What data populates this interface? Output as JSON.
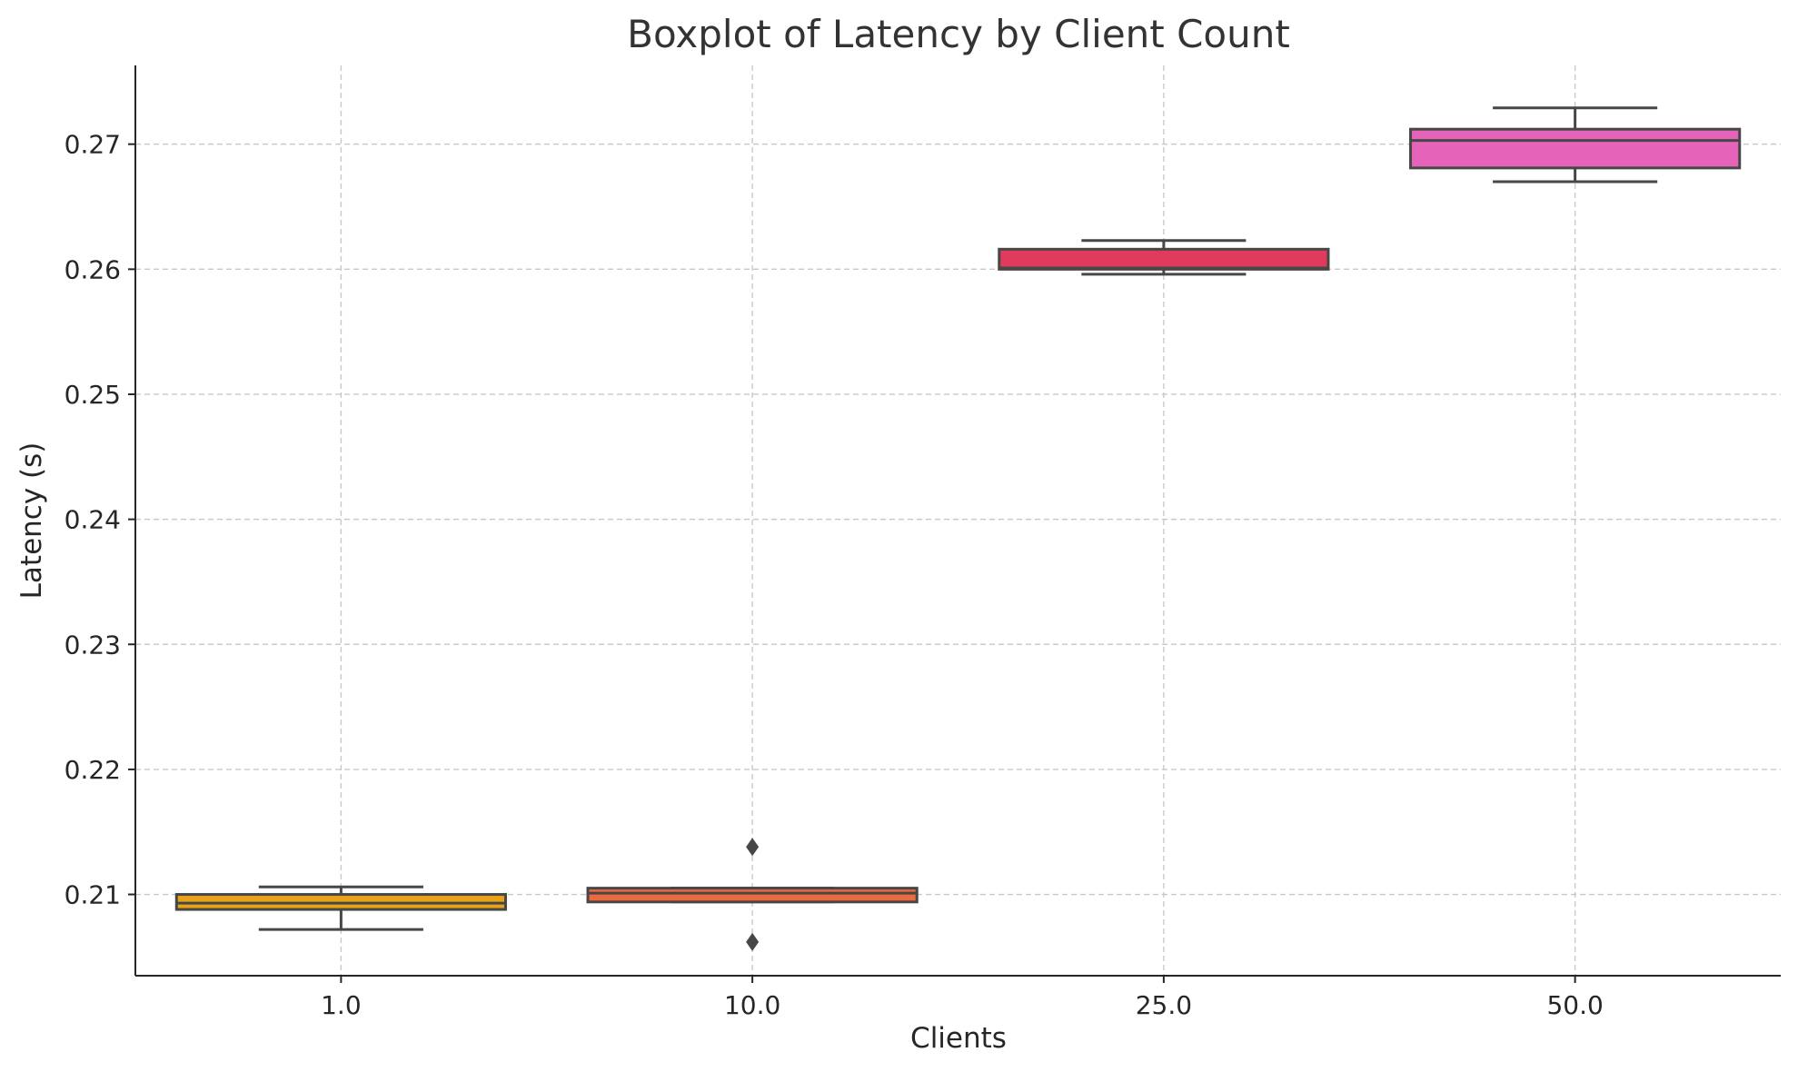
{
  "chart_data": {
    "type": "boxplot",
    "title": "Boxplot of Latency by Client Count",
    "xlabel": "Clients",
    "ylabel": "Latency (s)",
    "categories": [
      "1.0",
      "10.0",
      "25.0",
      "50.0"
    ],
    "y_ticks": [
      "0.21",
      "0.22",
      "0.23",
      "0.24",
      "0.25",
      "0.26",
      "0.27"
    ],
    "y_tick_values": [
      0.21,
      0.22,
      0.23,
      0.24,
      0.25,
      0.26,
      0.27
    ],
    "ylim": [
      0.2035,
      0.2763
    ],
    "grid": true,
    "boxes": [
      {
        "category": "1.0",
        "whisker_low": 0.2072,
        "q1": 0.2088,
        "median": 0.2093,
        "q3": 0.21,
        "whisker_high": 0.2106,
        "outliers": [],
        "color": "#e8a317"
      },
      {
        "category": "10.0",
        "whisker_low": 0.2094,
        "q1": 0.2094,
        "median": 0.2101,
        "q3": 0.2105,
        "whisker_high": 0.2105,
        "outliers": [
          0.2138,
          0.2062
        ],
        "color": "#ec6a3d"
      },
      {
        "category": "25.0",
        "whisker_low": 0.2596,
        "q1": 0.26,
        "median": 0.2601,
        "q3": 0.2616,
        "whisker_high": 0.2623,
        "outliers": [],
        "color": "#e23a5c"
      },
      {
        "category": "50.0",
        "whisker_low": 0.267,
        "q1": 0.2681,
        "median": 0.2703,
        "q3": 0.2712,
        "whisker_high": 0.2729,
        "outliers": [],
        "color": "#e563b8"
      }
    ]
  }
}
